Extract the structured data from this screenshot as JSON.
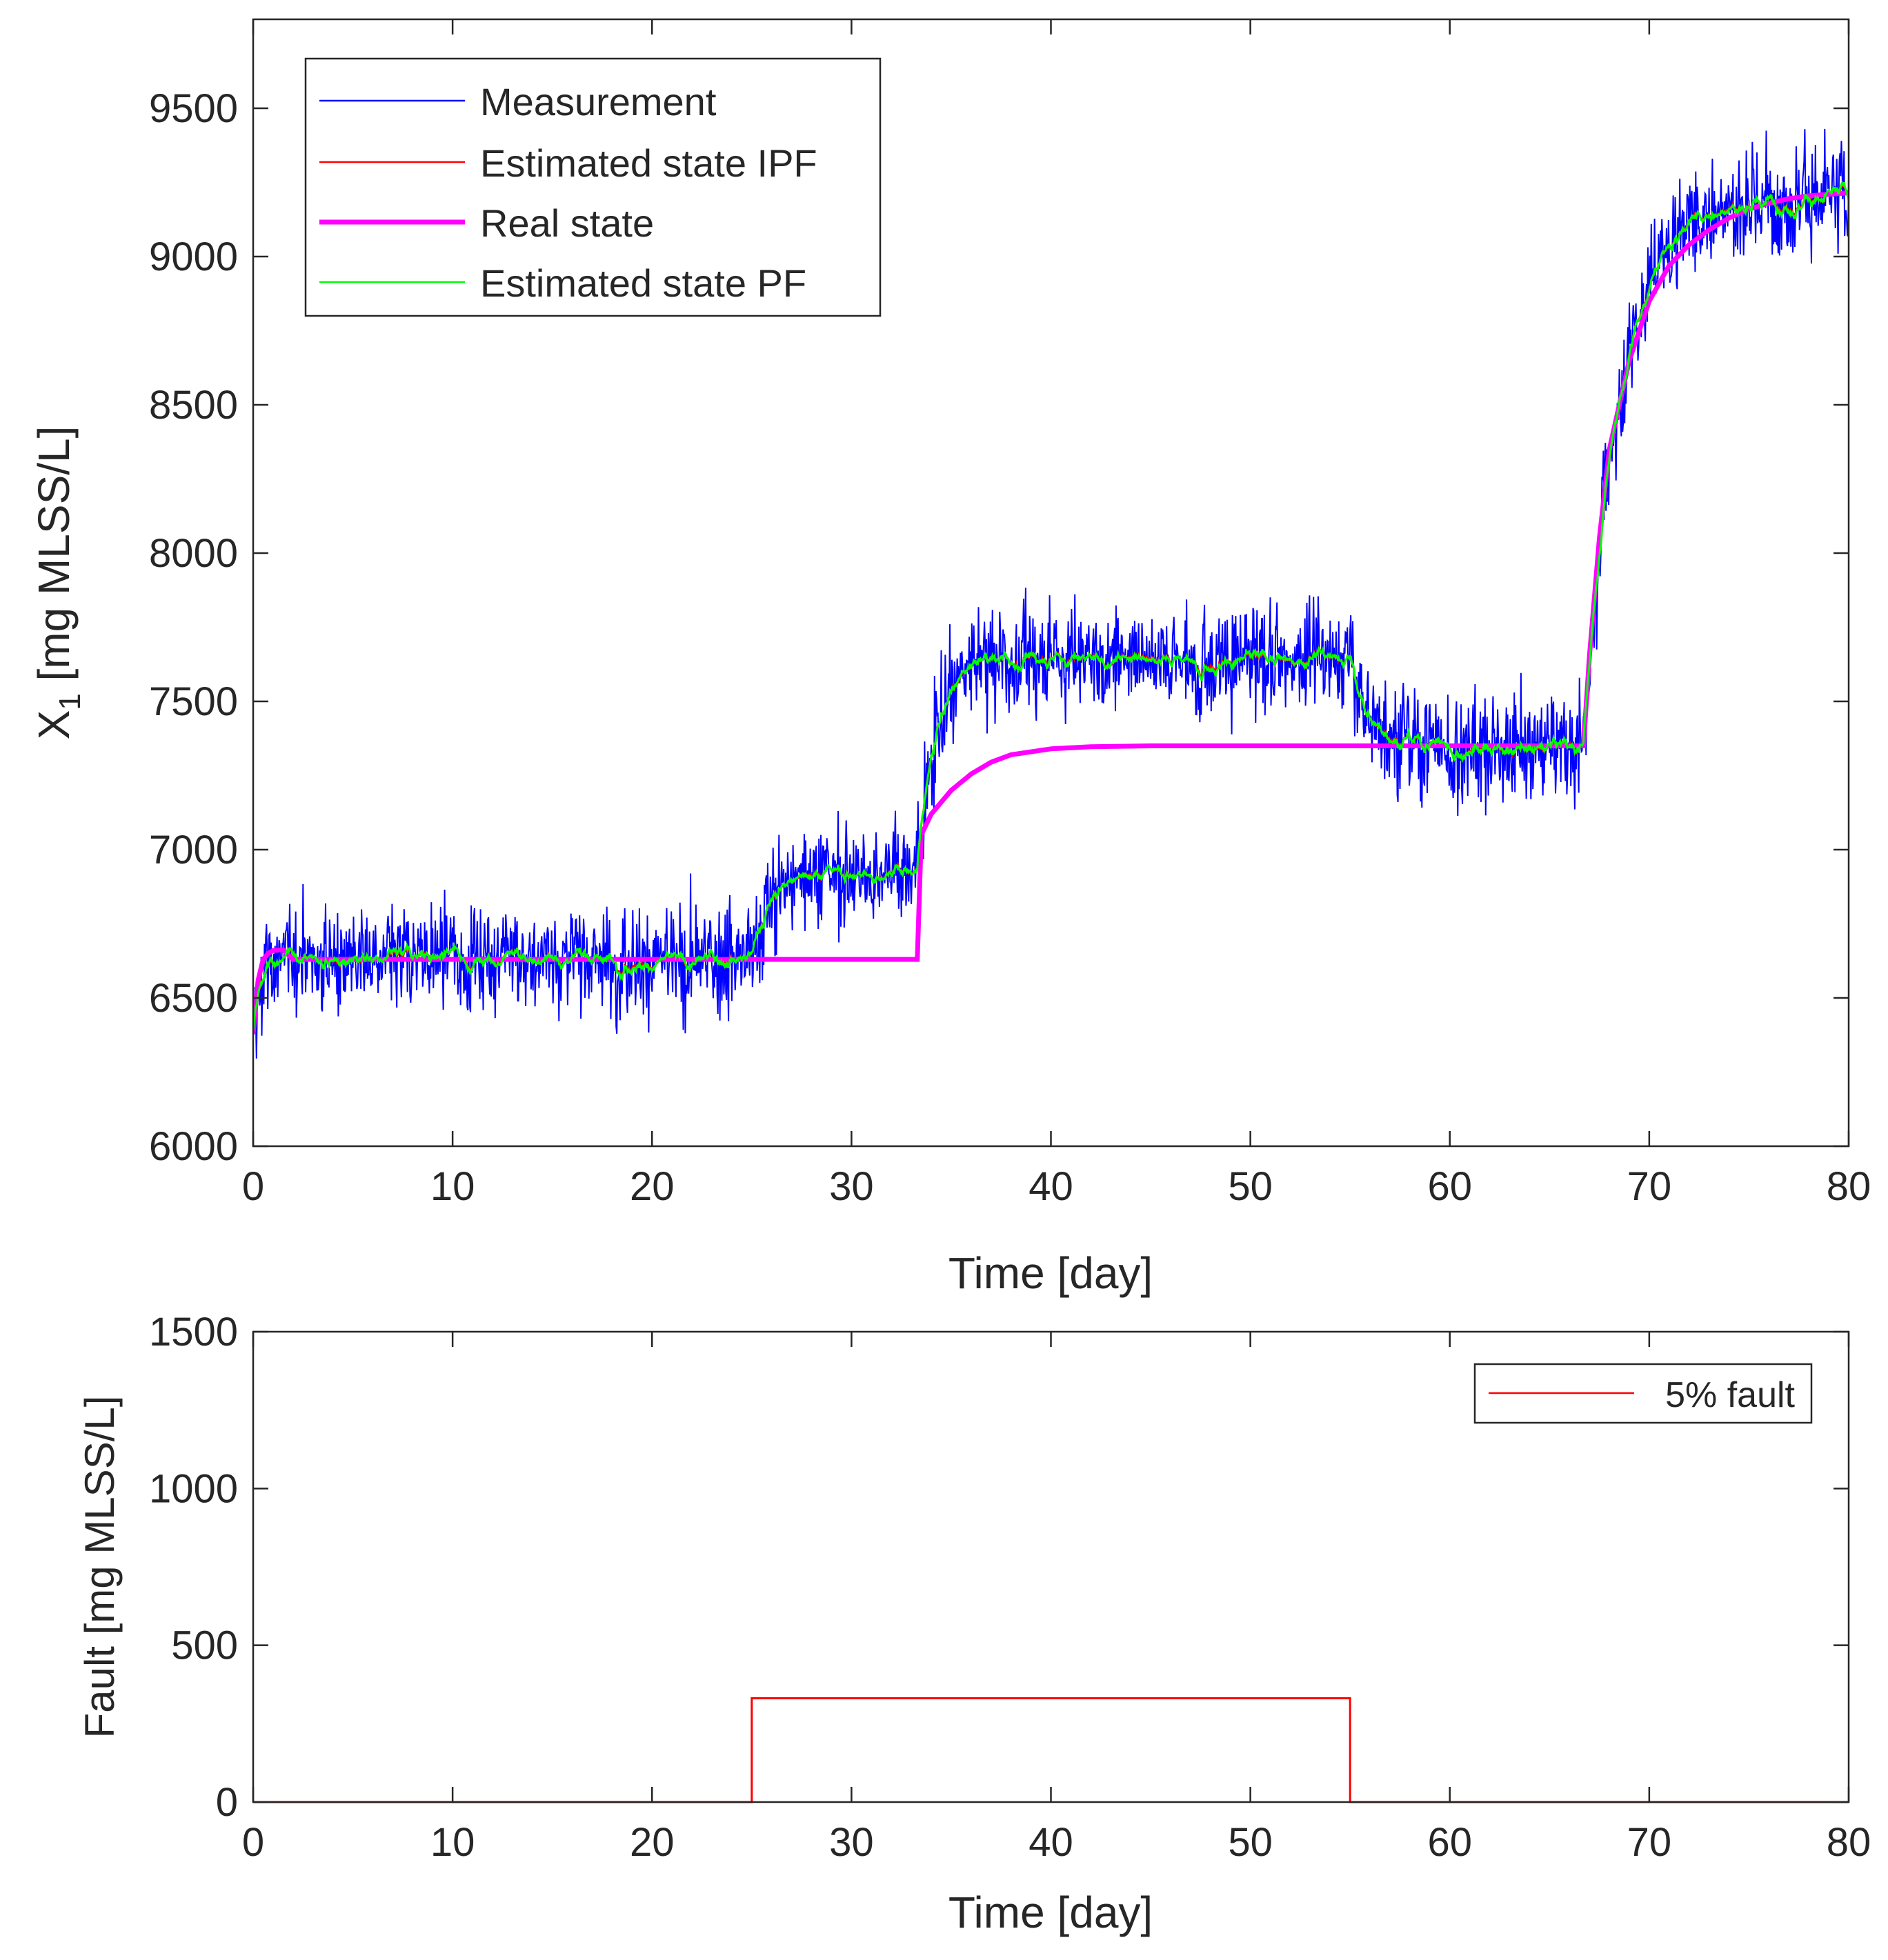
{
  "chart_data": [
    {
      "type": "line",
      "xlabel": "Time [day]",
      "ylabel_main": "X",
      "ylabel_sub": "1",
      "ylabel_rest": " [mg MLSS/L]",
      "xlim": [
        0,
        80
      ],
      "ylim": [
        6000,
        9800
      ],
      "xticks": [
        0,
        10,
        20,
        30,
        40,
        50,
        60,
        70,
        80
      ],
      "yticks": [
        6000,
        6500,
        7000,
        7500,
        8000,
        8500,
        9000,
        9500
      ],
      "grid": false,
      "legend_position": "top-left",
      "legend": [
        "Measurement",
        "Estimated state IPF",
        "Real state",
        "Estimated state PF"
      ],
      "colors": {
        "measurement": "#0000ff",
        "ipf": "#ff0000",
        "real": "#ff00ff",
        "pf": "#00ff00"
      },
      "real_state": {
        "x": [
          0,
          0.25,
          0.5,
          0.75,
          1,
          1.5,
          2,
          25,
          33.3,
          33.5,
          34,
          35,
          36,
          37,
          38,
          40,
          42,
          45,
          50,
          55,
          60,
          66.7,
          67,
          67.5,
          68,
          69,
          70,
          71,
          72,
          73,
          74,
          75,
          76,
          77,
          78,
          79,
          80
        ],
        "y": [
          6380,
          6560,
          6630,
          6650,
          6660,
          6662,
          6630,
          6630,
          6630,
          7050,
          7120,
          7200,
          7255,
          7295,
          7320,
          7340,
          7347,
          7350,
          7350,
          7350,
          7350,
          7350,
          7650,
          8050,
          8350,
          8650,
          8850,
          8970,
          9040,
          9090,
          9130,
          9160,
          9180,
          9195,
          9205,
          9210,
          9215
        ]
      },
      "segments": [
        {
          "x_start": 0,
          "x_end": 25,
          "level": 6630,
          "noise": 150
        },
        {
          "x_start": 25,
          "x_end": 33.3,
          "level": 6930,
          "noise": 150
        },
        {
          "x_start": 33.3,
          "x_end": 55,
          "level": 7650,
          "noise": 150
        },
        {
          "x_start": 55,
          "x_end": 66.7,
          "level": 7350,
          "noise": 150
        },
        {
          "x_start": 66.7,
          "x_end": 80,
          "level": 9200,
          "noise": 150
        }
      ]
    },
    {
      "type": "line",
      "xlabel": "Time [day]",
      "ylabel": "Fault [mg MLSS/L]",
      "xlim": [
        0,
        80
      ],
      "ylim": [
        0,
        1500
      ],
      "xticks": [
        0,
        10,
        20,
        30,
        40,
        50,
        60,
        70,
        80
      ],
      "yticks": [
        0,
        500,
        1000,
        1500
      ],
      "grid": false,
      "legend_position": "top-right",
      "series": [
        {
          "name": "5% fault",
          "color": "#ff0000",
          "x": [
            0,
            25,
            25,
            55,
            55,
            80
          ],
          "y": [
            0,
            0,
            331,
            331,
            0,
            0
          ]
        }
      ]
    }
  ]
}
